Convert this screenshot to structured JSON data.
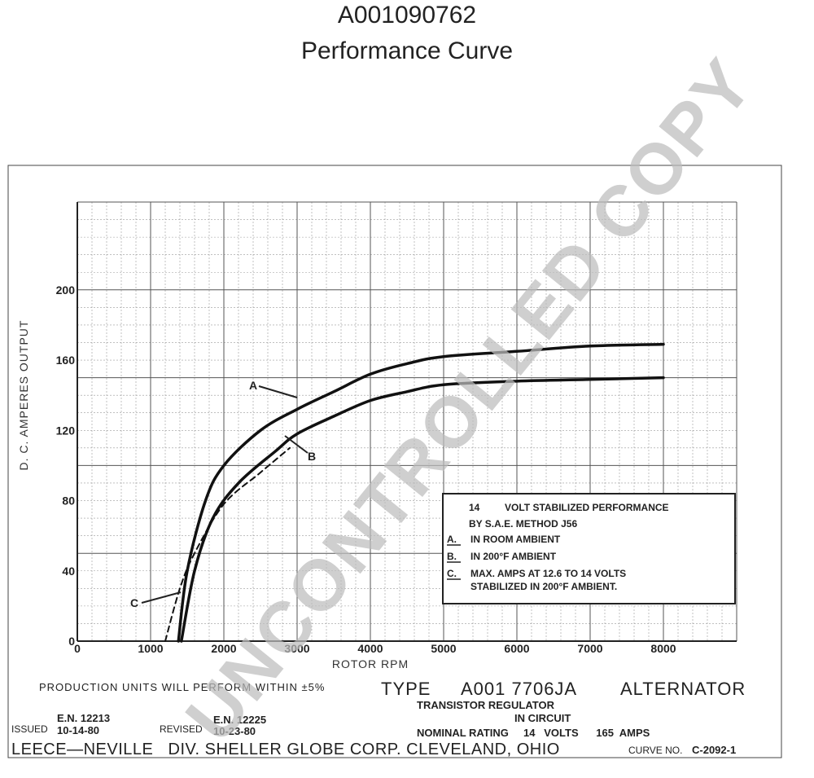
{
  "header": {
    "part_number": "A001090762",
    "subtitle": "Performance Curve"
  },
  "chart_data": {
    "type": "line",
    "xlabel": "ROTOR RPM",
    "ylabel": "D. C. AMPERES OUTPUT",
    "xlim": [
      0,
      9000
    ],
    "ylim": [
      0,
      250
    ],
    "x_ticks": [
      "0",
      "1000",
      "2000",
      "3000",
      "4000",
      "5000",
      "6000",
      "7000",
      "8000"
    ],
    "y_ticks": [
      "0",
      "40",
      "80",
      "120",
      "160",
      "200"
    ],
    "grid": true,
    "series": [
      {
        "name": "A",
        "style": "solid",
        "points": [
          [
            1380,
            0
          ],
          [
            1500,
            40
          ],
          [
            1750,
            80
          ],
          [
            2000,
            100
          ],
          [
            2500,
            120
          ],
          [
            3000,
            132
          ],
          [
            3500,
            142
          ],
          [
            4000,
            152
          ],
          [
            4500,
            158
          ],
          [
            5000,
            162
          ],
          [
            6000,
            165
          ],
          [
            7000,
            168
          ],
          [
            8000,
            169
          ]
        ]
      },
      {
        "name": "B",
        "style": "solid",
        "points": [
          [
            1420,
            0
          ],
          [
            1600,
            40
          ],
          [
            1850,
            70
          ],
          [
            2200,
            90
          ],
          [
            2700,
            108
          ],
          [
            3000,
            118
          ],
          [
            3500,
            128
          ],
          [
            4000,
            137
          ],
          [
            4500,
            142
          ],
          [
            5000,
            146
          ],
          [
            6000,
            148
          ],
          [
            7000,
            149
          ],
          [
            8000,
            150
          ]
        ]
      },
      {
        "name": "C",
        "style": "dashed",
        "points": [
          [
            1200,
            0
          ],
          [
            1400,
            30
          ],
          [
            1600,
            50
          ],
          [
            2000,
            78
          ],
          [
            2500,
            96
          ],
          [
            2900,
            110
          ]
        ]
      }
    ],
    "curve_labels": [
      "A",
      "B",
      "C"
    ],
    "legend": {
      "placement": "lower-right",
      "lines": [
        {
          "key": "14",
          "text": "VOLT STABILIZED PERFORMANCE"
        },
        {
          "key": "",
          "text": "BY S.A.E. METHOD  J56"
        },
        {
          "key": "A.",
          "text": "IN ROOM AMBIENT"
        },
        {
          "key": "B.",
          "text": "IN 200°F AMBIENT"
        },
        {
          "key": "C.",
          "text": "MAX. AMPS AT 12.6  TO  14 VOLTS"
        },
        {
          "key": "",
          "text": "STABILIZED IN 200°F AMBIENT."
        }
      ]
    }
  },
  "footer": {
    "production_note": "PRODUCTION UNITS WILL PERFORM WITHIN ±5%",
    "type_label": "TYPE",
    "type_value": "A001 7706JA",
    "alternator": "ALTERNATOR",
    "regulator_line1": "TRANSISTOR  REGULATOR",
    "regulator_line2": "IN  CIRCUIT",
    "nominal": "NOMINAL RATING     14   VOLTS      165  AMPS",
    "en_issued": "E.N. 12213",
    "issued_label": "ISSUED",
    "issued_date": "10-14-80",
    "en_revised": "E.N. 12225",
    "revised_label": "REVISED",
    "revised_date": "10-23-80",
    "company": "LEECE—NEVILLE   DIV. SHELLER GLOBE CORP. CLEVELAND, OHIO",
    "curve_no_label": "CURVE NO.",
    "curve_no": "C-2092-1"
  },
  "watermark": "UNCONTROLLED COPY"
}
